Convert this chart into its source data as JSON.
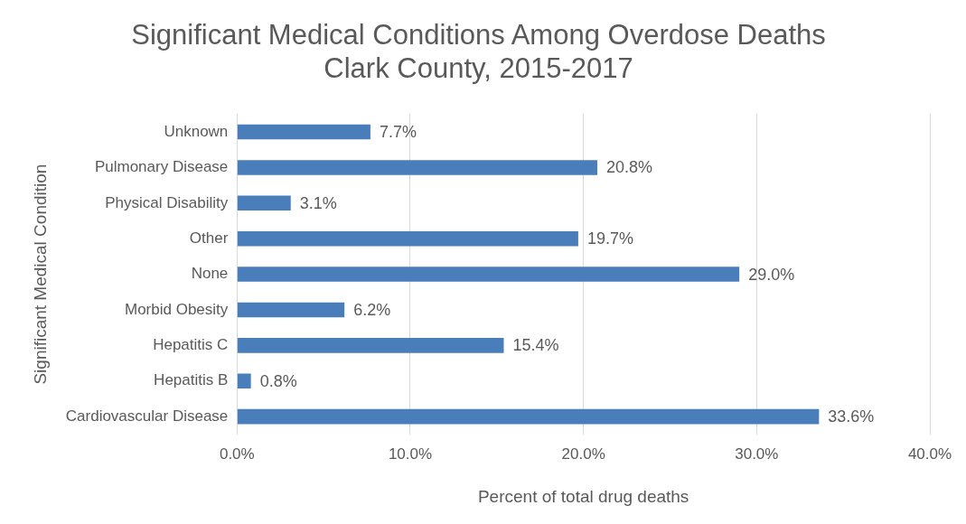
{
  "chart_data": {
    "type": "bar",
    "orientation": "horizontal",
    "title": "Significant Medical Conditions Among Overdose Deaths",
    "subtitle": "Clark County, 2015-2017",
    "xlabel": "Percent of total drug deaths",
    "ylabel": "Significant Medical Condition",
    "categories": [
      "Unknown",
      "Pulmonary Disease",
      "Physical Disability",
      "Other",
      "None",
      "Morbid Obesity",
      "Hepatitis C",
      "Hepatitis B",
      "Cardiovascular Disease"
    ],
    "values": [
      7.7,
      20.8,
      3.1,
      19.7,
      29.0,
      6.2,
      15.4,
      0.8,
      33.6
    ],
    "value_labels": [
      "7.7%",
      "20.8%",
      "3.1%",
      "19.7%",
      "29.0%",
      "6.2%",
      "15.4%",
      "0.8%",
      "33.6%"
    ],
    "color": "#4a7ebb",
    "xlim": [
      0,
      40
    ],
    "xticks": [
      {
        "value": 0,
        "label": "0.0%"
      },
      {
        "value": 10,
        "label": "10.0%"
      },
      {
        "value": 20,
        "label": "20.0%"
      },
      {
        "value": 30,
        "label": "30.0%"
      },
      {
        "value": 40,
        "label": "40.0%"
      }
    ],
    "grid": "x",
    "legend": false
  }
}
